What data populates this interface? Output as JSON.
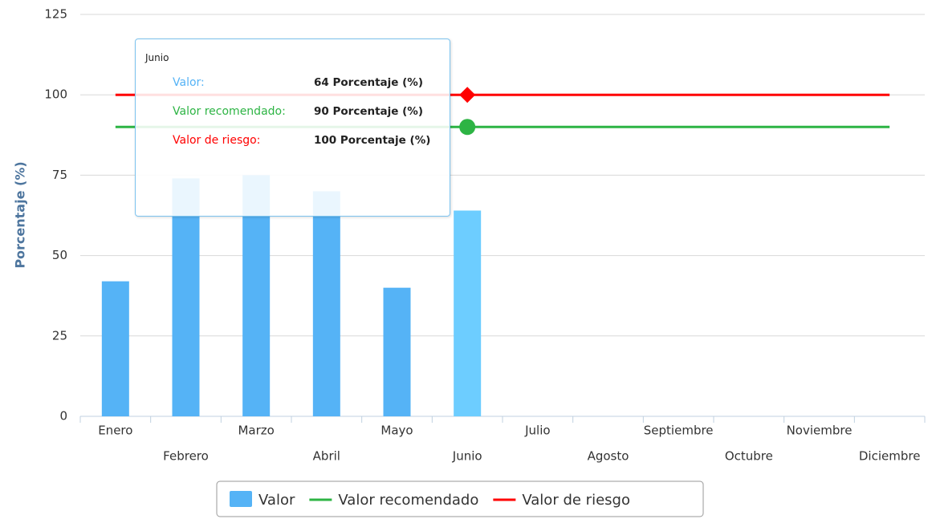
{
  "chart_data": {
    "type": "bar",
    "y_label": "Porcentaje (%)",
    "categories": [
      "Enero",
      "Febrero",
      "Marzo",
      "Abril",
      "Mayo",
      "Junio",
      "Julio",
      "Agosto",
      "Septiembre",
      "Octubre",
      "Noviembre",
      "Diciembre"
    ],
    "series": [
      {
        "name": "Valor",
        "type": "bar",
        "color": "#55b3f6",
        "values": [
          42,
          74,
          75,
          70,
          40,
          64,
          null,
          null,
          null,
          null,
          null,
          null
        ]
      },
      {
        "name": "Valor recomendado",
        "type": "line",
        "color": "#2db444",
        "values": [
          90,
          90,
          90,
          90,
          90,
          90,
          90,
          90,
          90,
          90,
          90,
          90
        ]
      },
      {
        "name": "Valor de riesgo",
        "type": "line",
        "color": "#ff0000",
        "values": [
          100,
          100,
          100,
          100,
          100,
          100,
          100,
          100,
          100,
          100,
          100,
          100
        ]
      }
    ],
    "ylim": [
      0,
      125
    ],
    "yticks": [
      0,
      25,
      50,
      75,
      100,
      125
    ],
    "grid": true,
    "legend": "bottom",
    "hover_color": "#6dcdff",
    "tooltip": {
      "title": "Junio",
      "rows": [
        {
          "label": "Valor:",
          "value": "64 Porcentaje (%)"
        },
        {
          "label": "Valor recomendado:",
          "value": "90 Porcentaje (%)"
        },
        {
          "label": "Valor de riesgo:",
          "value": "100 Porcentaje (%)"
        }
      ]
    }
  }
}
